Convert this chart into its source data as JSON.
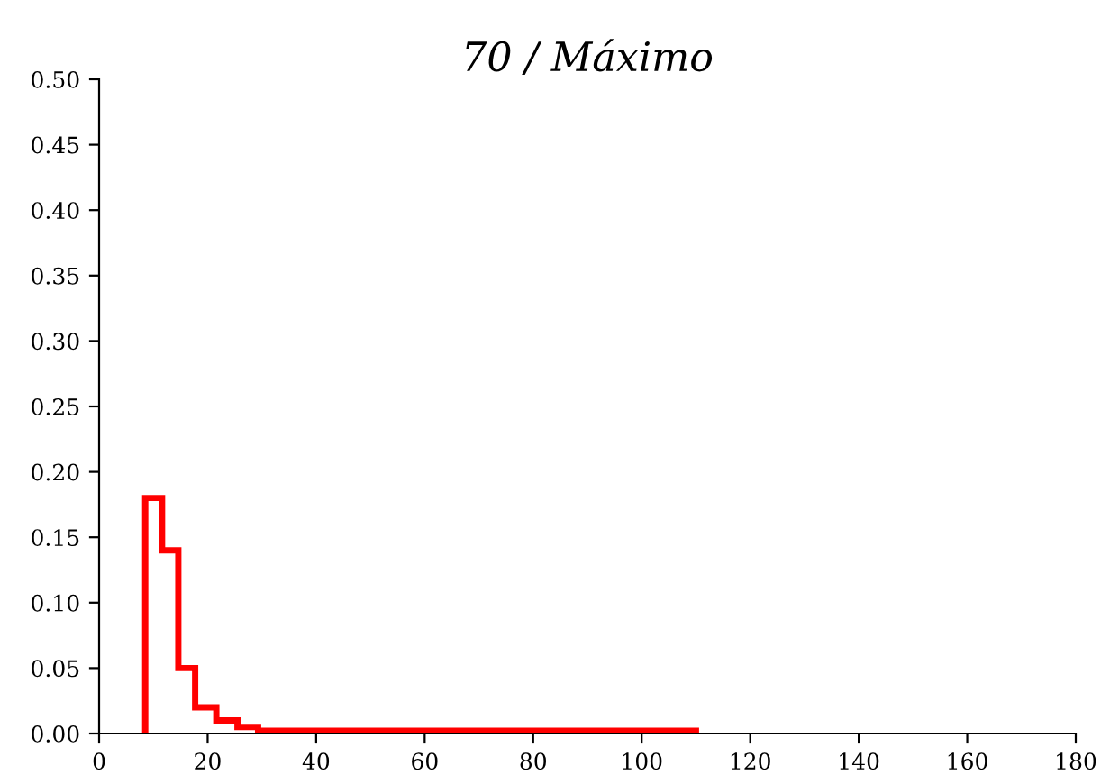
{
  "chart_data": {
    "type": "histogram",
    "title": "70 / Máximo",
    "color": "#ff0000",
    "bins": [
      8.5,
      11.6,
      14.6,
      17.7,
      21.6,
      25.5,
      29.3,
      110
    ],
    "values": [
      0.18,
      0.14,
      0.05,
      0.02,
      0.01,
      0.005,
      0.002
    ],
    "xlim": [
      0,
      180
    ],
    "xticks": [
      0,
      20,
      40,
      60,
      80,
      100,
      120,
      140,
      160,
      180
    ],
    "ylim": [
      0,
      0.5
    ],
    "yticks": [
      {
        "value": 0,
        "label": "0.00"
      },
      {
        "value": 0.05,
        "label": "0.05"
      },
      {
        "value": 0.1,
        "label": "0.10"
      },
      {
        "value": 0.15,
        "label": "0.15"
      },
      {
        "value": 0.2,
        "label": "0.20"
      },
      {
        "value": 0.25,
        "label": "0.25"
      },
      {
        "value": 0.3,
        "label": "0.30"
      },
      {
        "value": 0.35,
        "label": "0.35"
      },
      {
        "value": 0.4,
        "label": "0.40"
      },
      {
        "value": 0.45,
        "label": "0.45"
      },
      {
        "value": 0.5,
        "label": "0.50"
      }
    ],
    "grid": false
  }
}
